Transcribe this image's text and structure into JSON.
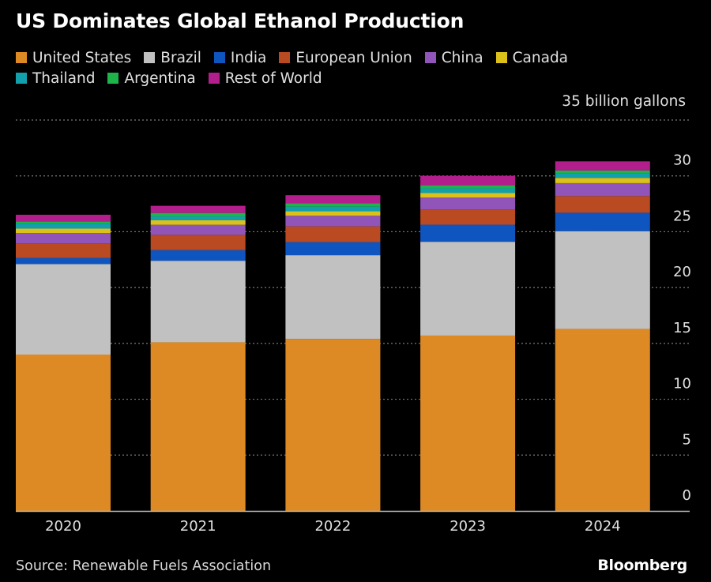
{
  "chart_data": {
    "type": "bar",
    "stacked": true,
    "title": "US Dominates Global Ethanol Production",
    "unit_label": "35 billion gallons",
    "xlabel": "",
    "ylabel": "billion gallons",
    "ylim": [
      0,
      35
    ],
    "yticks": [
      0,
      5,
      10,
      15,
      20,
      25,
      30,
      35
    ],
    "ytick_labels": [
      "0",
      "5",
      "10",
      "15",
      "20",
      "25",
      "30",
      "35 billion gallons"
    ],
    "y_axis_side": "right",
    "grid": true,
    "legend_position": "top-left",
    "categories": [
      "2020",
      "2021",
      "2022",
      "2023",
      "2024"
    ],
    "series": [
      {
        "name": "United States",
        "color": "#dd8a25",
        "values": [
          14.0,
          15.1,
          15.4,
          15.7,
          16.3
        ]
      },
      {
        "name": "Brazil",
        "color": "#c1c1c1",
        "values": [
          8.1,
          7.3,
          7.5,
          8.4,
          8.75
        ]
      },
      {
        "name": "India",
        "color": "#0f55c0",
        "values": [
          0.54,
          0.95,
          1.17,
          1.53,
          1.65
        ]
      },
      {
        "name": "European Union",
        "color": "#b94a22",
        "values": [
          1.32,
          1.37,
          1.41,
          1.37,
          1.49
        ]
      },
      {
        "name": "China",
        "color": "#9154b8",
        "values": [
          0.92,
          0.9,
          0.95,
          1.06,
          1.16
        ]
      },
      {
        "name": "Canada",
        "color": "#dcc11a",
        "values": [
          0.4,
          0.4,
          0.4,
          0.42,
          0.47
        ]
      },
      {
        "name": "Thailand",
        "color": "#13a0ad",
        "values": [
          0.45,
          0.35,
          0.42,
          0.4,
          0.38
        ]
      },
      {
        "name": "Argentina",
        "color": "#1eb44a",
        "values": [
          0.18,
          0.31,
          0.31,
          0.28,
          0.28
        ]
      },
      {
        "name": "Rest of World",
        "color": "#b21e8c",
        "values": [
          0.61,
          0.64,
          0.71,
          0.85,
          0.82
        ]
      }
    ]
  },
  "legend_rows": [
    [
      "United States",
      "Brazil",
      "India",
      "European Union",
      "China",
      "Canada"
    ],
    [
      "Thailand",
      "Argentina",
      "Rest of World"
    ]
  ],
  "footer": {
    "source": "Source: Renewable Fuels Association",
    "brand": "Bloomberg"
  }
}
